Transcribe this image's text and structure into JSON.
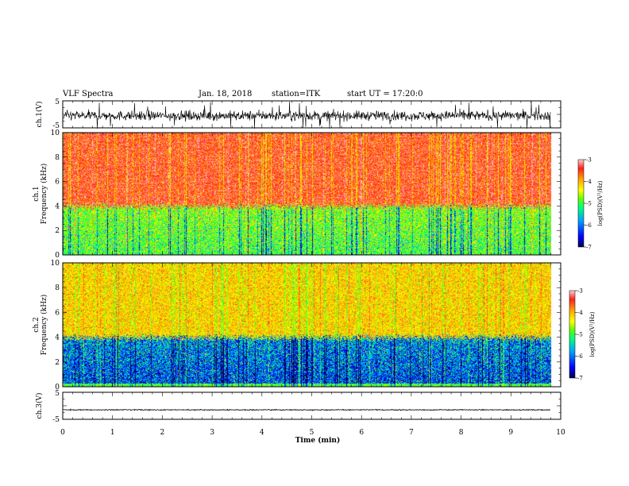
{
  "header": {
    "title": "VLF Spectra",
    "date": "Jan. 18, 2018",
    "station": "station=ITK",
    "start_ut": "start UT = 17:20:0"
  },
  "chart_data": [
    {
      "type": "line",
      "panel": "ch1-waveform",
      "ylabel": "ch.1(V)",
      "ylim": [
        -5,
        5
      ],
      "y_ticks": [
        "5",
        "-5"
      ],
      "x_range_min": [
        0,
        9.8
      ],
      "description_values": {
        "baseline_v": -0.5,
        "noise_amplitude_v": 2.5
      }
    },
    {
      "type": "heatmap",
      "panel": "ch1-spectrogram",
      "ylabel_line1": "ch.1",
      "ylabel_line2": "Frequency (kHz)",
      "ylim": [
        0,
        10
      ],
      "y_ticks": [
        "0",
        "2",
        "4",
        "6",
        "8",
        "10"
      ],
      "colorbar": {
        "label": "log(PSD)(V²/Hz)",
        "range": [
          -7,
          -3
        ],
        "ticks": [
          "-3",
          "-4",
          "-5",
          "-6",
          "-7"
        ]
      },
      "boundary_khz": 4
    },
    {
      "type": "heatmap",
      "panel": "ch2-spectrogram",
      "ylabel_line1": "ch.2",
      "ylabel_line2": "Frequency (kHz)",
      "ylim": [
        0,
        10
      ],
      "y_ticks": [
        "0",
        "2",
        "4",
        "6",
        "8",
        "10"
      ],
      "colorbar": {
        "label": "log(PSD)(V²/Hz)",
        "range": [
          -7,
          -3
        ],
        "ticks": [
          "-3",
          "-4",
          "-5",
          "-6",
          "-7"
        ]
      },
      "boundary_khz": 4
    },
    {
      "type": "line",
      "panel": "ch3-waveform",
      "ylabel": "ch.3(V)",
      "ylim": [
        -5,
        5
      ],
      "y_ticks": [
        "5",
        "-5"
      ],
      "x_range_min": [
        0,
        9.8
      ],
      "description_values": {
        "baseline_v": -1.5
      }
    }
  ],
  "x_axis": {
    "label": "Time (min)",
    "range": [
      0,
      10
    ],
    "ticks": [
      "0",
      "1",
      "2",
      "3",
      "4",
      "5",
      "6",
      "7",
      "8",
      "9",
      "10"
    ]
  },
  "colors": {
    "colormap": [
      "#000050",
      "#0000ff",
      "#00a0ff",
      "#00ff80",
      "#60ff00",
      "#ffff00",
      "#ffa000",
      "#ff2020",
      "#ffd0d0"
    ],
    "axes": "#000000"
  }
}
